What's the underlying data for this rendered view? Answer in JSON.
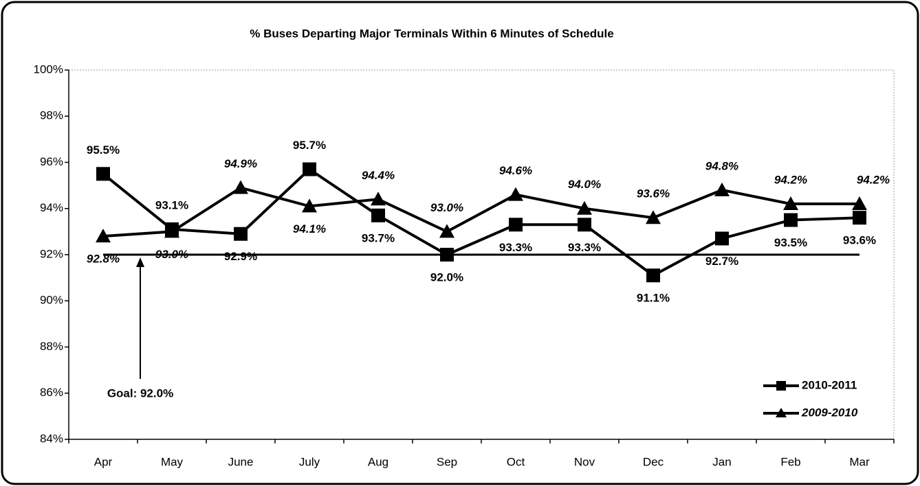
{
  "chart_data": {
    "type": "line",
    "title": "% Buses Departing Major Terminals Within 6 Minutes of Schedule",
    "categories": [
      "Apr",
      "May",
      "June",
      "July",
      "Aug",
      "Sep",
      "Oct",
      "Nov",
      "Dec",
      "Jan",
      "Feb",
      "Mar"
    ],
    "series": [
      {
        "name": "2010-2011",
        "color": "#000000",
        "marker": "square",
        "values": [
          95.5,
          93.1,
          92.9,
          95.7,
          93.7,
          92.0,
          93.3,
          93.3,
          91.1,
          92.7,
          93.5,
          93.6
        ],
        "value_labels": [
          "95.5%",
          "93.1%",
          "92.9%",
          "95.7%",
          "93.7%",
          "92.0%",
          "93.3%",
          "93.3%",
          "91.1%",
          "92.7%",
          "93.5%",
          "93.6%"
        ]
      },
      {
        "name": "2009-2010",
        "color": "#000000",
        "marker": "triangle",
        "values": [
          92.8,
          93.0,
          94.9,
          94.1,
          94.4,
          93.0,
          94.6,
          94.0,
          93.6,
          94.8,
          94.2,
          94.2
        ],
        "value_labels": [
          "92.8%",
          "93.0%",
          "94.9%",
          "94.1%",
          "94.4%",
          "93.0%",
          "94.6%",
          "94.0%",
          "93.6%",
          "94.8%",
          "94.2%",
          "94.2%"
        ]
      }
    ],
    "goal": {
      "value": 92.0,
      "label": "Goal: 92.0%"
    },
    "ylim": [
      84,
      100
    ],
    "yticks": [
      {
        "value": 84,
        "label": "84%"
      },
      {
        "value": 86,
        "label": "86%"
      },
      {
        "value": 88,
        "label": "88%"
      },
      {
        "value": 90,
        "label": "90%"
      },
      {
        "value": 92,
        "label": "92%"
      },
      {
        "value": 94,
        "label": "94%"
      },
      {
        "value": 96,
        "label": "96%"
      },
      {
        "value": 98,
        "label": "98%"
      },
      {
        "value": 100,
        "label": "100%"
      }
    ],
    "legend": "lower right"
  }
}
